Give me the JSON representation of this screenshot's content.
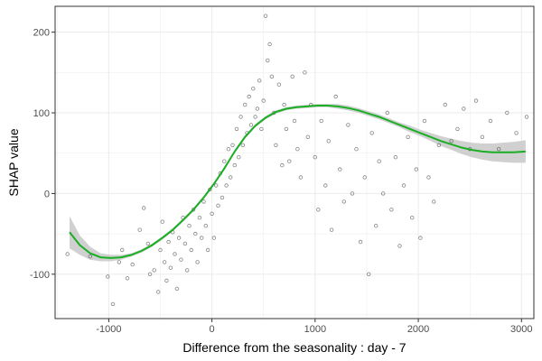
{
  "chart_data": {
    "type": "scatter",
    "xlabel": "Difference from the seasonality : day - 7",
    "ylabel": "SHAP value",
    "xlim": [
      -1520,
      3120
    ],
    "ylim": [
      -155,
      232
    ],
    "x_ticks": [
      -1000,
      0,
      1000,
      2000,
      3000
    ],
    "y_ticks": [
      -100,
      0,
      100,
      200
    ],
    "x_tick_labels": [
      "-1000",
      "0",
      "1000",
      "2000",
      "3000"
    ],
    "y_tick_labels": [
      "-100",
      "0",
      "100",
      "200"
    ],
    "grid": true,
    "background": "white with light grey grid, bordered panel",
    "series": [
      {
        "kind": "points",
        "marker": "open circle, dark grey, semi-transparent",
        "color": "#333333",
        "description_of_distribution": "dense cloud rising steeply from about (-600,-90) to (500,120), sparser points spread between 500 and 3000",
        "points": [
          [
            -1400,
            -75
          ],
          [
            -1180,
            -78
          ],
          [
            -1010,
            -103
          ],
          [
            -960,
            -137
          ],
          [
            -900,
            -85
          ],
          [
            -870,
            -70
          ],
          [
            -820,
            -105
          ],
          [
            -770,
            -88
          ],
          [
            -700,
            -45
          ],
          [
            -660,
            -18
          ],
          [
            -620,
            -62
          ],
          [
            -600,
            -100
          ],
          [
            -560,
            -95
          ],
          [
            -520,
            -122
          ],
          [
            -500,
            -70
          ],
          [
            -480,
            -35
          ],
          [
            -460,
            -85
          ],
          [
            -440,
            -108
          ],
          [
            -420,
            -60
          ],
          [
            -400,
            -92
          ],
          [
            -380,
            -48
          ],
          [
            -360,
            -75
          ],
          [
            -340,
            -118
          ],
          [
            -320,
            -55
          ],
          [
            -300,
            -82
          ],
          [
            -280,
            -30
          ],
          [
            -260,
            -62
          ],
          [
            -240,
            -95
          ],
          [
            -220,
            -40
          ],
          [
            -200,
            -70
          ],
          [
            -180,
            -20
          ],
          [
            -160,
            -50
          ],
          [
            -140,
            -85
          ],
          [
            -120,
            -30
          ],
          [
            -100,
            -55
          ],
          [
            -80,
            -10
          ],
          [
            -60,
            -40
          ],
          [
            -40,
            -70
          ],
          [
            -20,
            5
          ],
          [
            0,
            -25
          ],
          [
            20,
            -55
          ],
          [
            40,
            10
          ],
          [
            60,
            -15
          ],
          [
            80,
            25
          ],
          [
            100,
            -5
          ],
          [
            120,
            40
          ],
          [
            140,
            10
          ],
          [
            160,
            55
          ],
          [
            180,
            20
          ],
          [
            200,
            60
          ],
          [
            220,
            35
          ],
          [
            240,
            80
          ],
          [
            260,
            45
          ],
          [
            280,
            95
          ],
          [
            300,
            60
          ],
          [
            320,
            110
          ],
          [
            340,
            75
          ],
          [
            360,
            120
          ],
          [
            380,
            85
          ],
          [
            400,
            130
          ],
          [
            420,
            95
          ],
          [
            440,
            105
          ],
          [
            460,
            140
          ],
          [
            480,
            80
          ],
          [
            500,
            115
          ],
          [
            520,
            220
          ],
          [
            540,
            165
          ],
          [
            560,
            185
          ],
          [
            580,
            145
          ],
          [
            600,
            100
          ],
          [
            620,
            60
          ],
          [
            650,
            135
          ],
          [
            680,
            35
          ],
          [
            700,
            110
          ],
          [
            720,
            80
          ],
          [
            750,
            40
          ],
          [
            780,
            145
          ],
          [
            800,
            90
          ],
          [
            830,
            55
          ],
          [
            860,
            20
          ],
          [
            900,
            150
          ],
          [
            930,
            70
          ],
          [
            960,
            110
          ],
          [
            1000,
            45
          ],
          [
            1030,
            -20
          ],
          [
            1060,
            90
          ],
          [
            1100,
            10
          ],
          [
            1130,
            65
          ],
          [
            1160,
            -45
          ],
          [
            1200,
            120
          ],
          [
            1240,
            30
          ],
          [
            1280,
            -10
          ],
          [
            1320,
            85
          ],
          [
            1360,
            0
          ],
          [
            1400,
            55
          ],
          [
            1440,
            -60
          ],
          [
            1480,
            20
          ],
          [
            1520,
            -100
          ],
          [
            1550,
            75
          ],
          [
            1590,
            -40
          ],
          [
            1620,
            40
          ],
          [
            1660,
            0
          ],
          [
            1700,
            100
          ],
          [
            1740,
            -20
          ],
          [
            1780,
            45
          ],
          [
            1820,
            -65
          ],
          [
            1860,
            10
          ],
          [
            1900,
            70
          ],
          [
            1940,
            -30
          ],
          [
            1980,
            30
          ],
          [
            2020,
            -55
          ],
          [
            2060,
            90
          ],
          [
            2100,
            20
          ],
          [
            2150,
            -10
          ],
          [
            2200,
            60
          ],
          [
            2260,
            110
          ],
          [
            2320,
            65
          ],
          [
            2380,
            80
          ],
          [
            2440,
            105
          ],
          [
            2500,
            55
          ],
          [
            2560,
            115
          ],
          [
            2620,
            70
          ],
          [
            2700,
            90
          ],
          [
            2780,
            55
          ],
          [
            2860,
            100
          ],
          [
            2950,
            75
          ],
          [
            3050,
            95
          ]
        ]
      },
      {
        "kind": "smooth",
        "color": "#1aaf24",
        "ci_color": "#c8c8c8",
        "points": [
          [
            -1380,
            -48,
            -28,
            -68
          ],
          [
            -1280,
            -64,
            -52,
            -76
          ],
          [
            -1180,
            -74,
            -66,
            -82
          ],
          [
            -1080,
            -79,
            -74,
            -84
          ],
          [
            -980,
            -80,
            -76,
            -84
          ],
          [
            -880,
            -79,
            -76,
            -82
          ],
          [
            -780,
            -76,
            -74,
            -78
          ],
          [
            -680,
            -71,
            -69,
            -73
          ],
          [
            -580,
            -64,
            -62,
            -66
          ],
          [
            -480,
            -55,
            -53,
            -57
          ],
          [
            -380,
            -45,
            -43,
            -47
          ],
          [
            -280,
            -33,
            -31,
            -35
          ],
          [
            -180,
            -20,
            -18,
            -22
          ],
          [
            -80,
            -5,
            -3,
            -7
          ],
          [
            20,
            12,
            14,
            10
          ],
          [
            120,
            31,
            33,
            29
          ],
          [
            220,
            52,
            54,
            50
          ],
          [
            320,
            70,
            72,
            68
          ],
          [
            420,
            84,
            86,
            82
          ],
          [
            520,
            94,
            96,
            92
          ],
          [
            620,
            101,
            103,
            99
          ],
          [
            720,
            105,
            107,
            103
          ],
          [
            820,
            107,
            109,
            105
          ],
          [
            920,
            108,
            110,
            106
          ],
          [
            1020,
            109,
            111,
            107
          ],
          [
            1120,
            109,
            111,
            107
          ],
          [
            1220,
            108,
            111,
            105
          ],
          [
            1320,
            106,
            109,
            103
          ],
          [
            1420,
            103,
            106,
            100
          ],
          [
            1520,
            99,
            102,
            96
          ],
          [
            1620,
            95,
            98,
            92
          ],
          [
            1720,
            90,
            93,
            87
          ],
          [
            1820,
            85,
            88,
            82
          ],
          [
            1920,
            80,
            84,
            76
          ],
          [
            2020,
            75,
            79,
            71
          ],
          [
            2120,
            70,
            75,
            65
          ],
          [
            2220,
            65,
            71,
            59
          ],
          [
            2320,
            61,
            68,
            54
          ],
          [
            2420,
            57,
            65,
            49
          ],
          [
            2520,
            54,
            63,
            45
          ],
          [
            2620,
            52,
            62,
            42
          ],
          [
            2720,
            51,
            62,
            40
          ],
          [
            2820,
            51,
            63,
            39
          ],
          [
            2920,
            51,
            64,
            38
          ],
          [
            3040,
            52,
            66,
            38
          ]
        ]
      }
    ]
  },
  "colors": {
    "panel_border": "#333333",
    "grid": "#ebebeb",
    "point_stroke": "#333333",
    "smooth_line": "#1aaf24",
    "ci_band": "#c8c8c8"
  }
}
